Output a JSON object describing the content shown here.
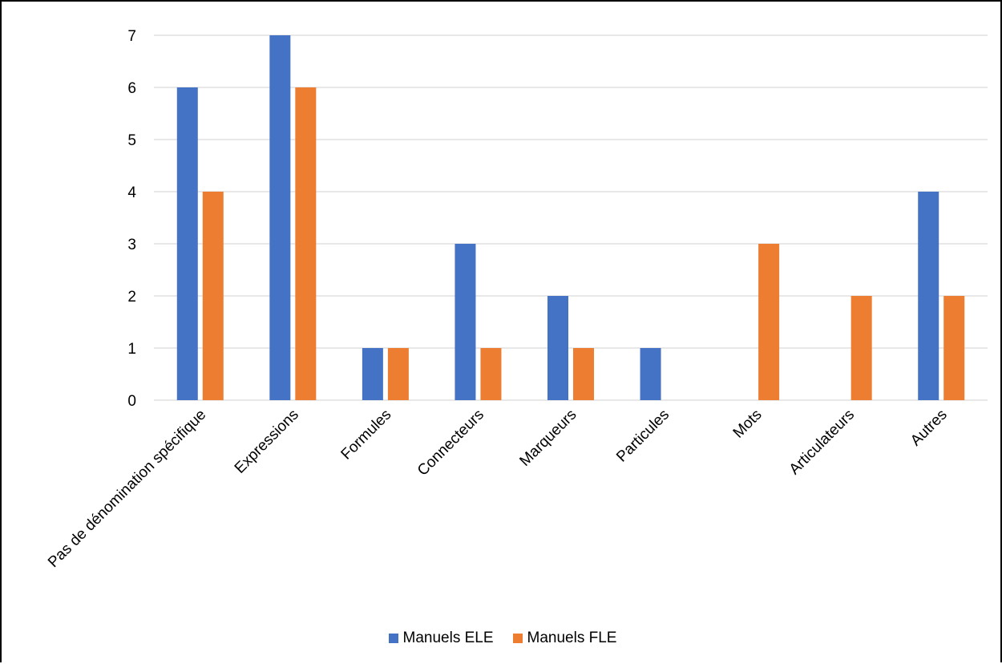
{
  "chart_data": {
    "type": "bar",
    "title": "",
    "xlabel": "",
    "ylabel": "",
    "categories": [
      "Pas de dénomination spécifique",
      "Expressions",
      "Formules",
      "Connecteurs",
      "Marqueurs",
      "Particules",
      "Mots",
      "Articulateurs",
      "Autres"
    ],
    "series": [
      {
        "name": "Manuels ELE",
        "color": "#4472C4",
        "values": [
          6,
          7,
          1,
          3,
          2,
          1,
          0,
          0,
          4
        ]
      },
      {
        "name": "Manuels FLE",
        "color": "#ED7D31",
        "values": [
          4,
          6,
          1,
          1,
          1,
          0,
          3,
          2,
          2
        ]
      }
    ],
    "ylim": [
      0,
      7
    ],
    "yticks": [
      "0",
      "1",
      "2",
      "3",
      "4",
      "5",
      "6",
      "7"
    ],
    "grid": true,
    "legend_position": "bottom"
  }
}
